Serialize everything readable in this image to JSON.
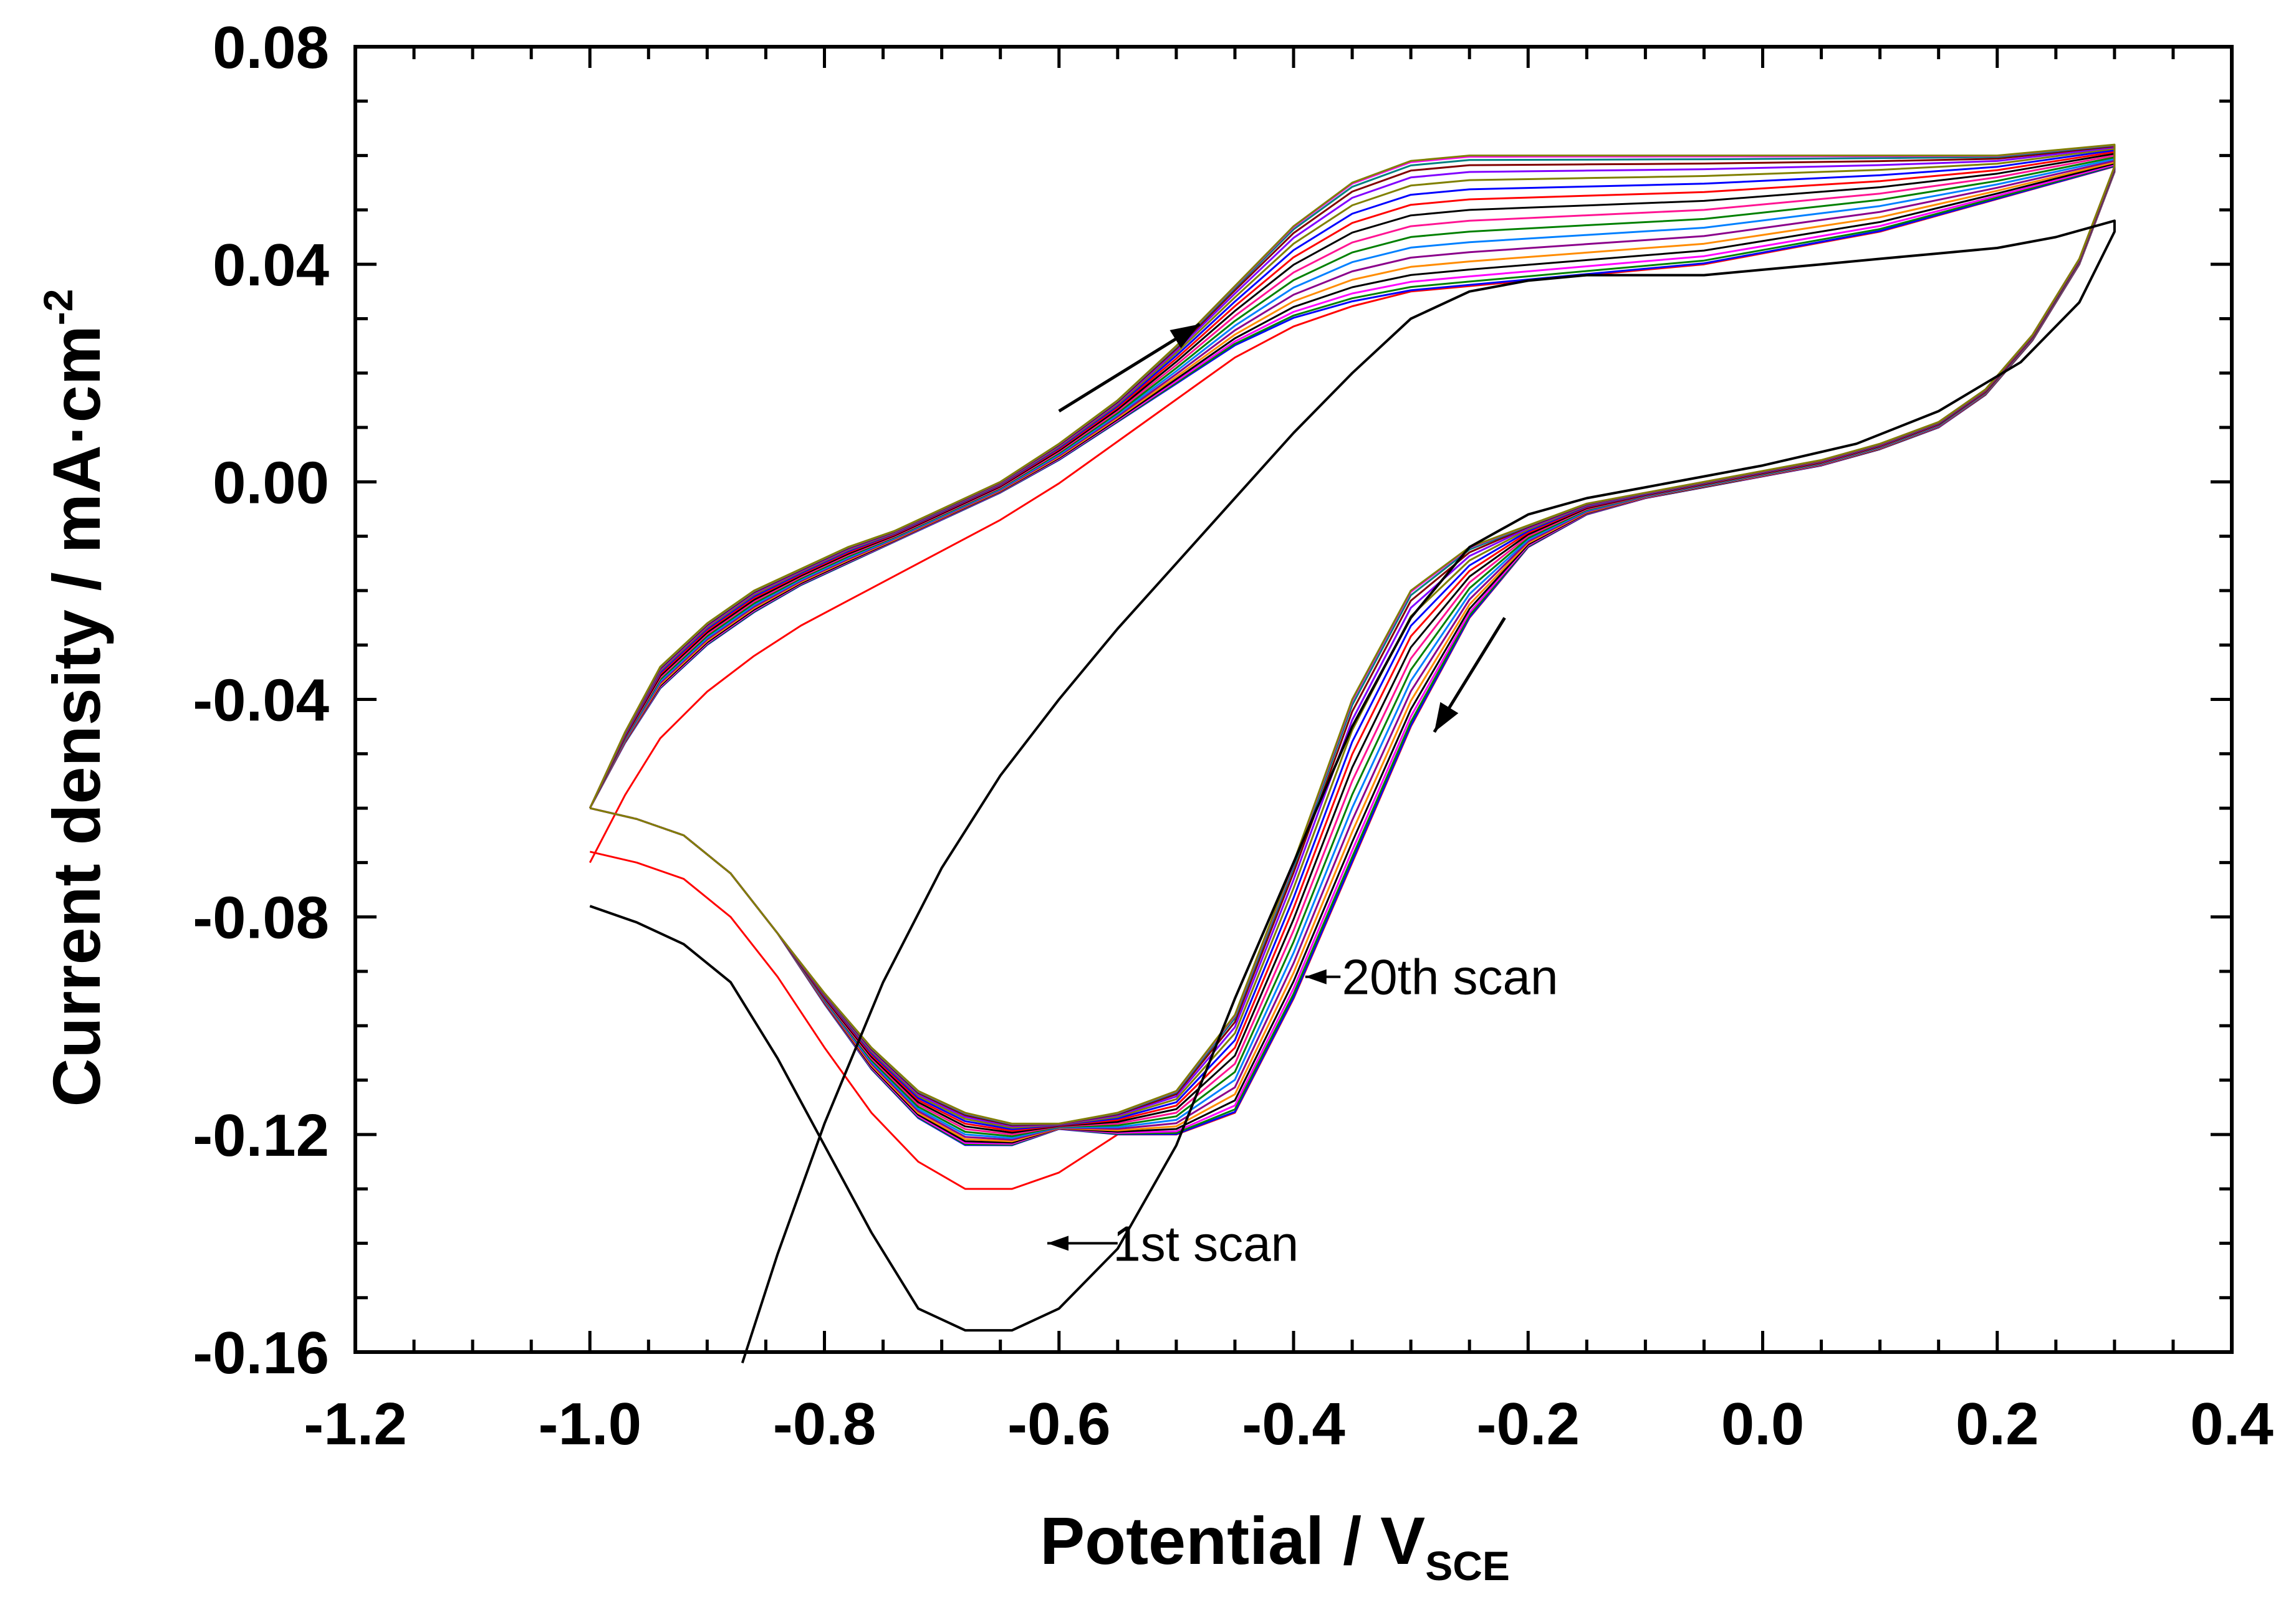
{
  "chart_data": {
    "type": "line",
    "title": "",
    "xlabel": {
      "main": "Potential / V",
      "subscript": "SCE"
    },
    "ylabel": {
      "main": "Current density / mA·cm",
      "superscript": "-2"
    },
    "xlim": [
      -1.2,
      0.4
    ],
    "ylim": [
      -0.16,
      0.08
    ],
    "xticks": [
      -1.2,
      -1.0,
      -0.8,
      -0.6,
      -0.4,
      -0.2,
      0.0,
      0.2,
      0.4
    ],
    "xtick_labels": [
      "-1.2",
      "-1.0",
      "-0.8",
      "-0.6",
      "-0.4",
      "-0.2",
      "0.0",
      "0.2",
      "0.4"
    ],
    "yticks": [
      -0.16,
      -0.12,
      -0.08,
      -0.04,
      0.0,
      0.04,
      0.08
    ],
    "ytick_labels": [
      "-0.16",
      "-0.12",
      "-0.08",
      "-0.04",
      "0.00",
      "0.04",
      "0.08"
    ],
    "grid": false,
    "annotations": [
      {
        "text": "20th scan",
        "at": [
          -0.38,
          -0.091
        ]
      },
      {
        "text": "1st scan",
        "at": [
          -0.57,
          -0.14
        ]
      }
    ],
    "direction_arrows": [
      {
        "name": "forward-scan",
        "from": [
          -0.6,
          0.013
        ],
        "to": [
          -0.48,
          0.029
        ]
      },
      {
        "name": "reverse-scan",
        "from": [
          -0.22,
          -0.025
        ],
        "to": [
          -0.28,
          -0.046
        ]
      }
    ],
    "series_count": 20,
    "series_colors": [
      "#000000",
      "#ff0000",
      "#0000ff",
      "#008000",
      "#ff00ff",
      "#000000",
      "#ff8c00",
      "#8b008b",
      "#0080ff",
      "#008000",
      "#ff1493",
      "#000000",
      "#ff0000",
      "#0000ff",
      "#808000",
      "#8000ff",
      "#800000",
      "#008080",
      "#ff00ff",
      "#808000"
    ],
    "first_scan": {
      "name": "Scan 1",
      "x": [
        -0.87,
        -0.84,
        -0.8,
        -0.75,
        -0.7,
        -0.65,
        -0.6,
        -0.55,
        -0.5,
        -0.45,
        -0.4,
        -0.35,
        -0.3,
        -0.25,
        -0.2,
        -0.15,
        -0.1,
        -0.05,
        0.0,
        0.05,
        0.1,
        0.15,
        0.2,
        0.25,
        0.3,
        0.3,
        0.27,
        0.22,
        0.15,
        0.08,
        0.0,
        -0.05,
        -0.1,
        -0.15,
        -0.2,
        -0.25,
        -0.3,
        -0.35,
        -0.4,
        -0.45,
        -0.5,
        -0.55,
        -0.6,
        -0.64,
        -0.68,
        -0.72,
        -0.76,
        -0.8,
        -0.84,
        -0.88,
        -0.92,
        -0.96,
        -1.0
      ],
      "y": [
        -0.162,
        -0.142,
        -0.118,
        -0.092,
        -0.071,
        -0.054,
        -0.04,
        -0.027,
        -0.015,
        -0.003,
        0.009,
        0.02,
        0.03,
        0.035,
        0.037,
        0.038,
        0.038,
        0.038,
        0.039,
        0.04,
        0.041,
        0.042,
        0.043,
        0.045,
        0.048,
        0.046,
        0.033,
        0.022,
        0.013,
        0.007,
        0.003,
        0.001,
        -0.001,
        -0.003,
        -0.006,
        -0.012,
        -0.025,
        -0.045,
        -0.07,
        -0.095,
        -0.122,
        -0.141,
        -0.152,
        -0.156,
        -0.156,
        -0.152,
        -0.138,
        -0.122,
        -0.106,
        -0.092,
        -0.085,
        -0.081,
        -0.078
      ]
    }
  }
}
